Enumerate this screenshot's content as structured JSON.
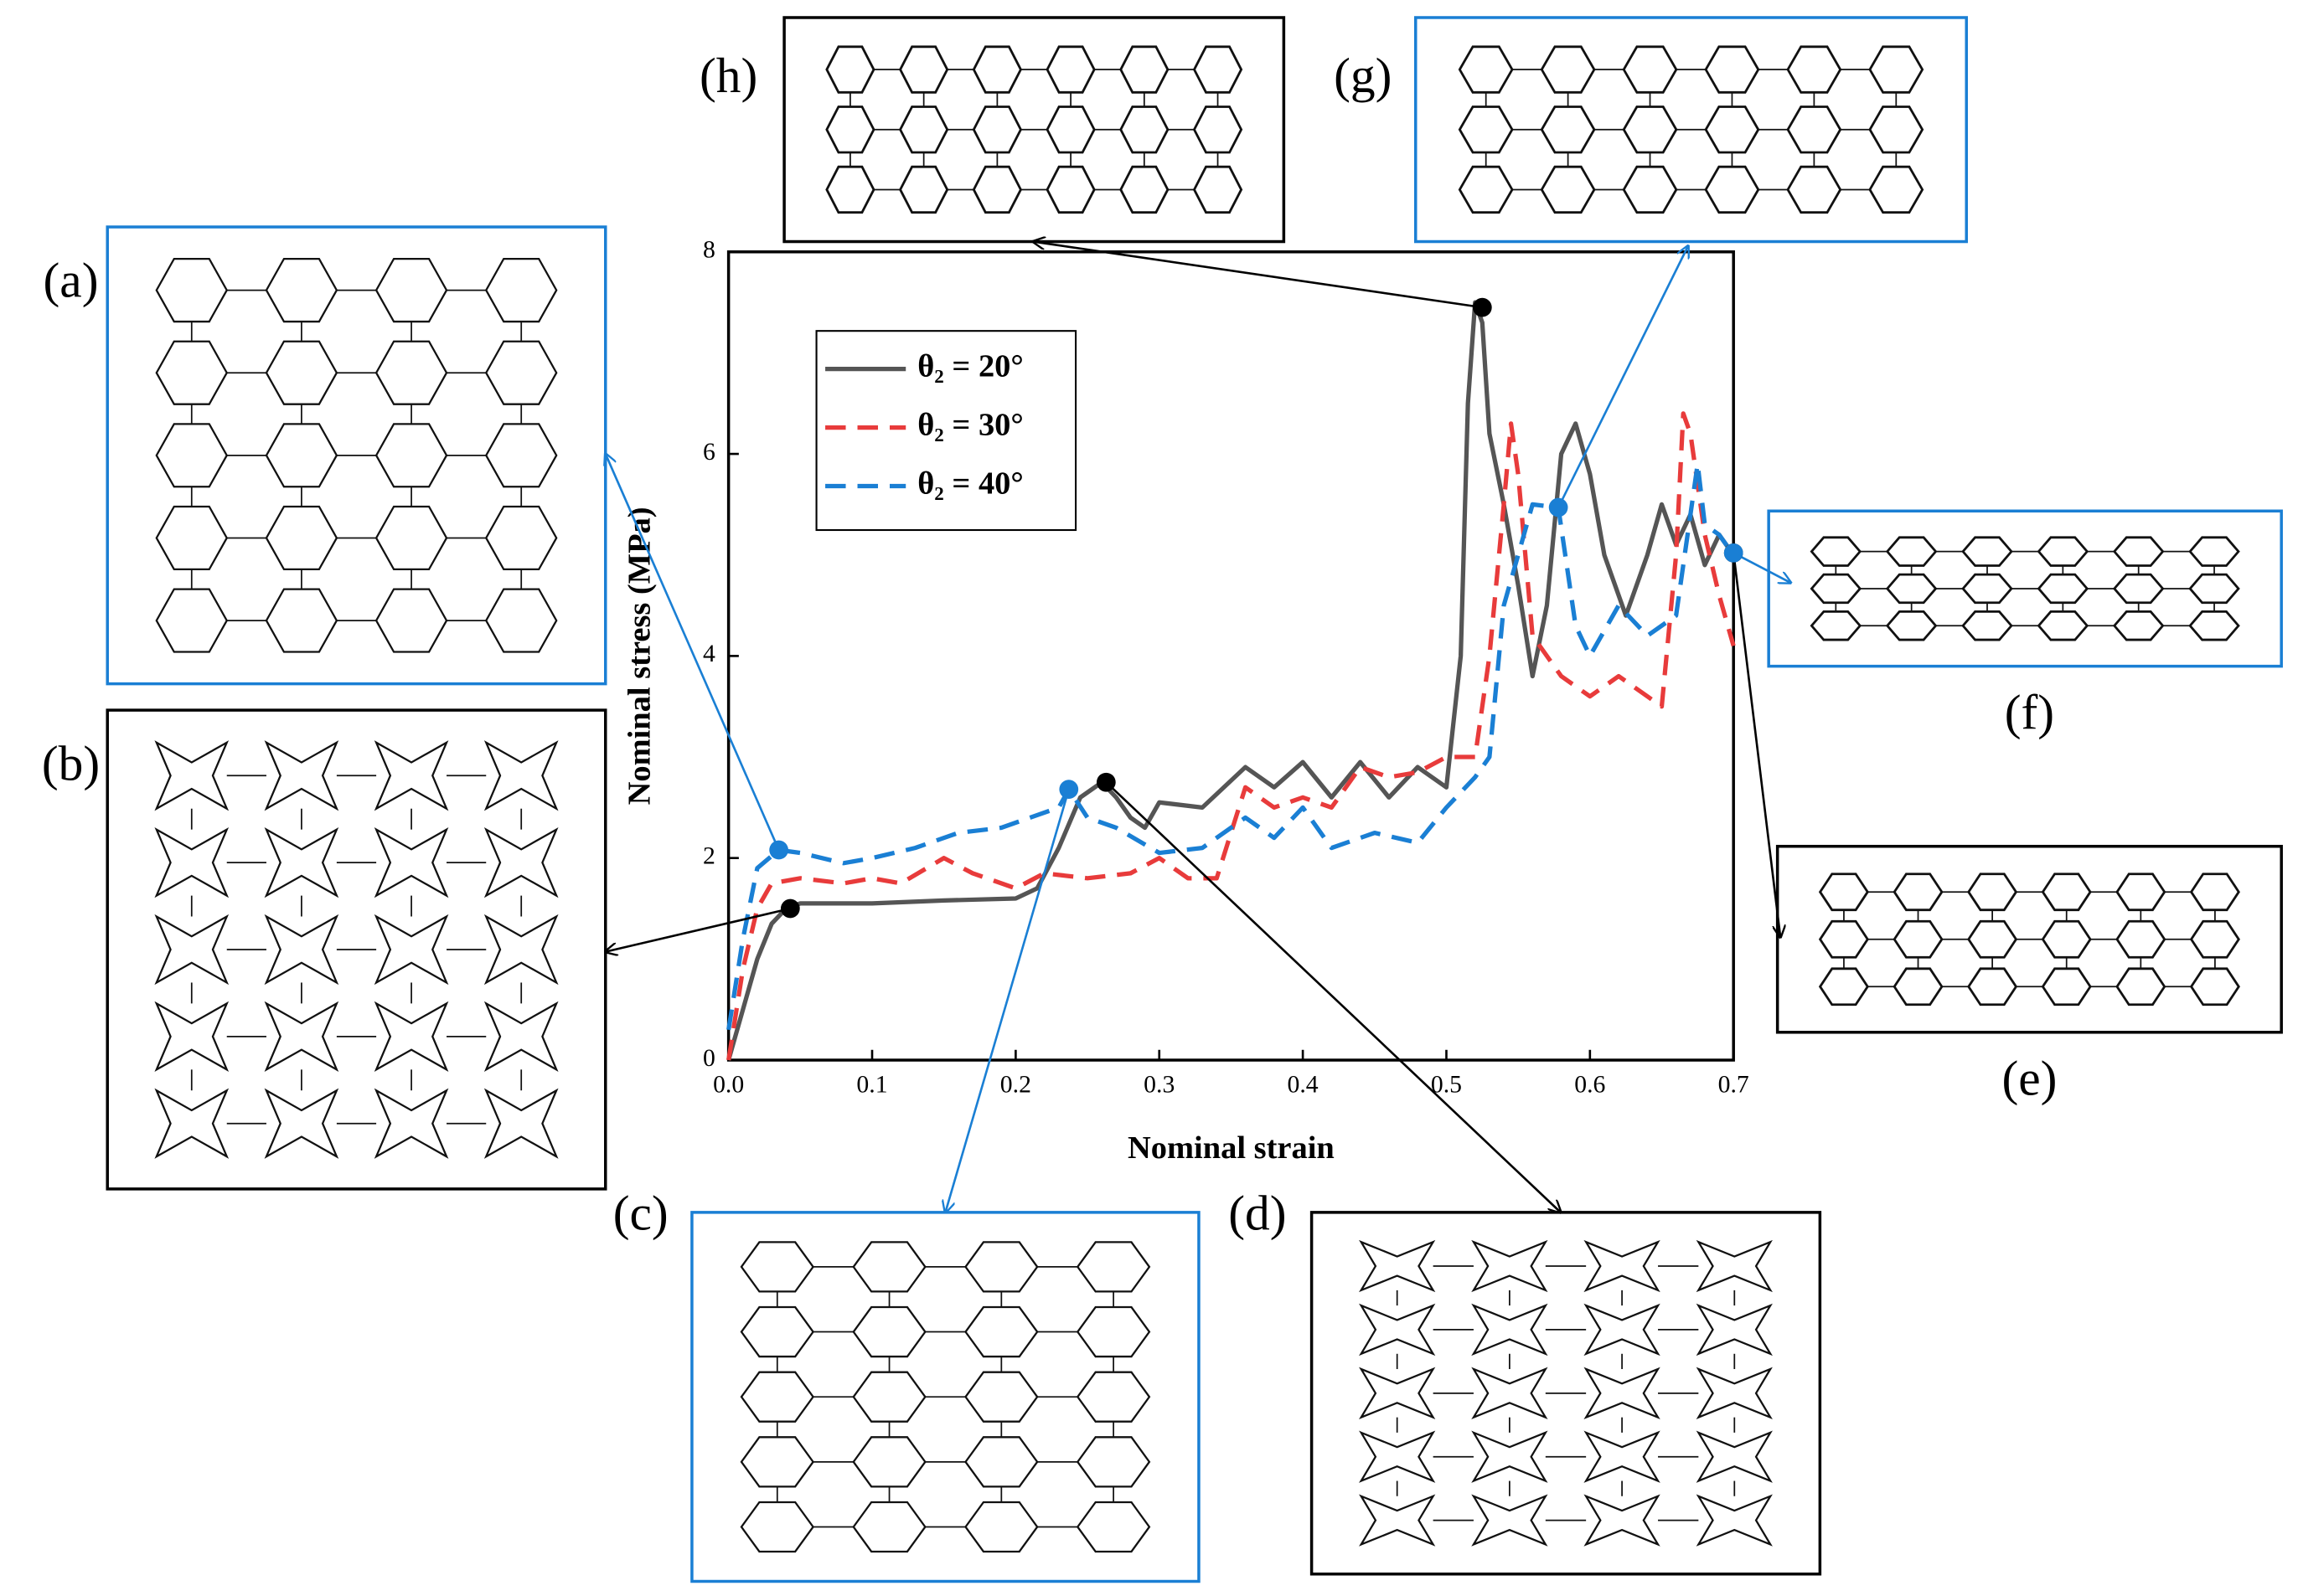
{
  "chart_data": {
    "type": "line",
    "x_label": "Nominal strain",
    "y_label": "Nominal stress (MPa)",
    "xlim": [
      0,
      0.7
    ],
    "ylim": [
      0,
      8
    ],
    "xticks": [
      {
        "value": 0,
        "label": "0.0"
      },
      0.1,
      0.2,
      0.3,
      0.4,
      0.5,
      0.6,
      0.7
    ],
    "yticks": [
      0,
      2,
      4,
      6,
      8
    ],
    "legend": "upper left",
    "series": [
      {
        "name": "θ₂ = 20°",
        "color": "#555555",
        "dash": "solid",
        "x": [
          0,
          0.01,
          0.02,
          0.03,
          0.04,
          0.05,
          0.1,
          0.15,
          0.2,
          0.215,
          0.23,
          0.245,
          0.26,
          0.27,
          0.28,
          0.29,
          0.3,
          0.33,
          0.36,
          0.38,
          0.4,
          0.42,
          0.44,
          0.46,
          0.48,
          0.5,
          0.51,
          0.515,
          0.52,
          0.525,
          0.53,
          0.54,
          0.55,
          0.56,
          0.57,
          0.58,
          0.59,
          0.6,
          0.61,
          0.625,
          0.64,
          0.65,
          0.66,
          0.67,
          0.68,
          0.69,
          0.7
        ],
        "values": [
          0,
          0.5,
          1.0,
          1.35,
          1.5,
          1.55,
          1.55,
          1.58,
          1.6,
          1.7,
          2.1,
          2.6,
          2.75,
          2.6,
          2.4,
          2.3,
          2.55,
          2.5,
          2.9,
          2.7,
          2.95,
          2.6,
          2.95,
          2.6,
          2.9,
          2.7,
          4.0,
          6.5,
          7.5,
          7.3,
          6.2,
          5.5,
          4.7,
          3.8,
          4.5,
          6.0,
          6.3,
          5.8,
          5.0,
          4.4,
          5.0,
          5.5,
          5.1,
          5.4,
          4.9,
          5.2,
          5.0
        ]
      },
      {
        "name": "θ₂ = 30°",
        "color": "#e83b3b",
        "dash": "dashed",
        "x": [
          0,
          0.01,
          0.02,
          0.03,
          0.05,
          0.08,
          0.1,
          0.12,
          0.15,
          0.17,
          0.2,
          0.22,
          0.25,
          0.28,
          0.3,
          0.32,
          0.34,
          0.36,
          0.38,
          0.4,
          0.42,
          0.44,
          0.46,
          0.48,
          0.5,
          0.52,
          0.53,
          0.54,
          0.545,
          0.55,
          0.56,
          0.58,
          0.6,
          0.62,
          0.64,
          0.65,
          0.66,
          0.665,
          0.67,
          0.68,
          0.69,
          0.7
        ],
        "values": [
          0,
          0.9,
          1.5,
          1.75,
          1.8,
          1.75,
          1.8,
          1.75,
          2.0,
          1.85,
          1.7,
          1.85,
          1.8,
          1.85,
          2.0,
          1.8,
          1.8,
          2.7,
          2.5,
          2.6,
          2.5,
          2.9,
          2.8,
          2.85,
          3.0,
          3.0,
          4.0,
          5.5,
          6.3,
          5.8,
          4.2,
          3.8,
          3.6,
          3.8,
          3.6,
          3.5,
          5.0,
          6.4,
          6.2,
          5.2,
          4.6,
          4.1
        ]
      },
      {
        "name": "θ₂ = 40°",
        "color": "#1a7fd4",
        "dash": "dashed",
        "x": [
          0,
          0.01,
          0.02,
          0.035,
          0.05,
          0.08,
          0.1,
          0.13,
          0.16,
          0.19,
          0.21,
          0.23,
          0.237,
          0.25,
          0.27,
          0.3,
          0.33,
          0.36,
          0.38,
          0.4,
          0.42,
          0.45,
          0.48,
          0.5,
          0.52,
          0.53,
          0.54,
          0.56,
          0.578,
          0.59,
          0.6,
          0.62,
          0.64,
          0.66,
          0.675,
          0.68,
          0.69,
          0.7
        ],
        "values": [
          0.3,
          1.2,
          1.9,
          2.08,
          2.05,
          1.95,
          2.0,
          2.1,
          2.25,
          2.3,
          2.4,
          2.5,
          2.68,
          2.4,
          2.3,
          2.05,
          2.1,
          2.4,
          2.2,
          2.5,
          2.1,
          2.25,
          2.15,
          2.5,
          2.8,
          3.0,
          4.5,
          5.5,
          5.47,
          4.3,
          4.0,
          4.5,
          4.2,
          4.4,
          5.9,
          5.3,
          5.2,
          5.0
        ]
      }
    ],
    "annotations": [
      {
        "label": "(a)",
        "x": 0.035,
        "y": 2.08,
        "color": "#1a7fd4"
      },
      {
        "label": "(b)",
        "x": 0.043,
        "y": 1.5,
        "color": "#000000"
      },
      {
        "label": "(c)",
        "x": 0.237,
        "y": 2.68,
        "color": "#1a7fd4"
      },
      {
        "label": "(d)",
        "x": 0.263,
        "y": 2.75,
        "color": "#000000"
      },
      {
        "label": "(e)",
        "x": 0.7,
        "y": 5.02,
        "color": "#000000"
      },
      {
        "label": "(f)",
        "x": 0.7,
        "y": 5.02,
        "color": "#1a7fd4"
      },
      {
        "label": "(g)",
        "x": 0.578,
        "y": 5.47,
        "color": "#1a7fd4"
      },
      {
        "label": "(h)",
        "x": 0.525,
        "y": 7.45,
        "color": "#000000"
      }
    ]
  }
}
